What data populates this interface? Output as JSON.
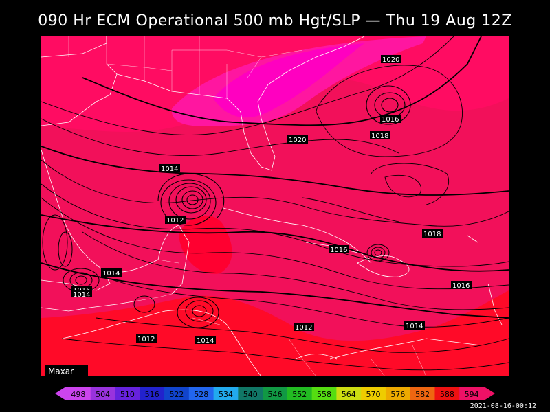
{
  "title": "090 Hr ECM Operational 500 mb Hgt/SLP — Thu 19 Aug 12Z",
  "brand": "Maxar",
  "timestamp": "2021-08-16-00:12",
  "isobar_labels": [
    {
      "text": "1020"
    },
    {
      "text": "1016"
    },
    {
      "text": "1018"
    },
    {
      "text": "1020"
    },
    {
      "text": "1014"
    },
    {
      "text": "1012"
    },
    {
      "text": "1016"
    },
    {
      "text": "1018"
    },
    {
      "text": "1016"
    },
    {
      "text": "1014"
    },
    {
      "text": "1016"
    },
    {
      "text": "1014"
    },
    {
      "text": "1012"
    },
    {
      "text": "1014"
    },
    {
      "text": "1012"
    },
    {
      "text": "1014"
    }
  ],
  "colorbar": {
    "values": [
      "498",
      "504",
      "510",
      "516",
      "522",
      "528",
      "534",
      "540",
      "546",
      "552",
      "558",
      "564",
      "570",
      "576",
      "582",
      "588",
      "594"
    ],
    "colors": [
      "#cc44ee",
      "#9933dd",
      "#6622dd",
      "#2222cc",
      "#1144cc",
      "#2266ee",
      "#22aaee",
      "#117766",
      "#119944",
      "#22bb22",
      "#55dd11",
      "#ccdd11",
      "#eecc00",
      "#eeaa00",
      "#ee6611",
      "#ee1111",
      "#ee1166"
    ]
  },
  "colors": {
    "background": "#000000",
    "field_high": "#ff0030",
    "field_main": "#f2105a",
    "field_mid": "#ff0a68",
    "field_low": "#ff1ca0",
    "field_lowest": "#ff00c8"
  }
}
